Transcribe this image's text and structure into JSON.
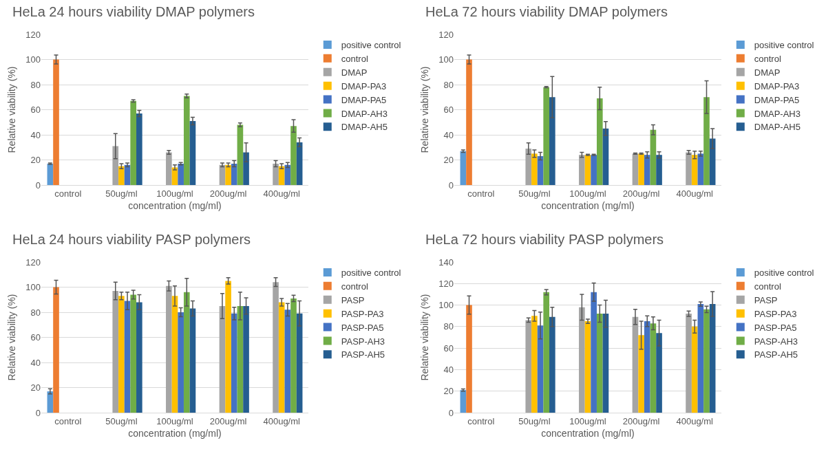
{
  "chart_data": [
    {
      "type": "bar",
      "title": "HeLa 24 hours viability DMAP polymers",
      "xlabel": "concentration (mg/ml)",
      "ylabel": "Relative viability (%)",
      "categories": [
        "control",
        "50ug/ml",
        "100ug/ml",
        "200ug/ml",
        "400ug/ml"
      ],
      "ylim": [
        0,
        120
      ],
      "yticks": [
        0,
        20,
        40,
        60,
        80,
        100,
        120
      ],
      "grid": "y",
      "legend": "right",
      "series": [
        {
          "name": "positive control",
          "color": "#5b9bd5",
          "values": [
            17,
            null,
            null,
            null,
            null
          ],
          "errors": [
            0.5,
            null,
            null,
            null,
            null
          ]
        },
        {
          "name": "control",
          "color": "#ed7d31",
          "values": [
            100,
            null,
            null,
            null,
            null
          ],
          "errors": [
            3.5,
            null,
            null,
            null,
            null
          ]
        },
        {
          "name": "DMAP",
          "color": "#a5a5a5",
          "values": [
            null,
            31,
            26,
            16,
            17
          ],
          "errors": [
            null,
            10,
            1.5,
            1.5,
            2.5
          ]
        },
        {
          "name": "DMAP-PA3",
          "color": "#ffc000",
          "values": [
            null,
            15,
            14,
            16,
            15
          ],
          "errors": [
            null,
            2,
            2,
            1.5,
            2
          ]
        },
        {
          "name": "DMAP-PA5",
          "color": "#4472c4",
          "values": [
            null,
            16,
            17,
            17,
            16
          ],
          "errors": [
            null,
            1.5,
            1,
            2.5,
            2
          ]
        },
        {
          "name": "DMAP-AH3",
          "color": "#70ad47",
          "values": [
            null,
            67,
            71,
            48,
            47
          ],
          "errors": [
            null,
            1,
            1.5,
            1.5,
            5
          ]
        },
        {
          "name": "DMAP-AH5",
          "color": "#255e91",
          "values": [
            null,
            57,
            51,
            26,
            34
          ],
          "errors": [
            null,
            2.5,
            3,
            7.5,
            3.5
          ]
        }
      ]
    },
    {
      "type": "bar",
      "title": "HeLa 72 hours viability DMAP polymers",
      "xlabel": "concentration (mg/ml)",
      "ylabel": "Relative viability (%)",
      "categories": [
        "control",
        "50ug/ml",
        "100ug/ml",
        "200ug/ml",
        "400ug/ml"
      ],
      "ylim": [
        0,
        120
      ],
      "yticks": [
        0,
        20,
        40,
        60,
        80,
        100,
        120
      ],
      "grid": "y",
      "legend": "right",
      "series": [
        {
          "name": "positive control",
          "color": "#5b9bd5",
          "values": [
            27,
            null,
            null,
            null,
            null
          ],
          "errors": [
            1,
            null,
            null,
            null,
            null
          ]
        },
        {
          "name": "control",
          "color": "#ed7d31",
          "values": [
            100,
            null,
            null,
            null,
            null
          ],
          "errors": [
            3.5,
            null,
            null,
            null,
            null
          ]
        },
        {
          "name": "DMAP",
          "color": "#a5a5a5",
          "values": [
            null,
            29,
            24,
            25,
            26
          ],
          "errors": [
            null,
            4.5,
            2,
            0.5,
            1.5
          ]
        },
        {
          "name": "DMAP-PA3",
          "color": "#ffc000",
          "values": [
            null,
            25,
            24,
            25,
            24
          ],
          "errors": [
            null,
            3,
            0.5,
            0.5,
            3
          ]
        },
        {
          "name": "DMAP-PA5",
          "color": "#4472c4",
          "values": [
            null,
            23,
            24,
            24,
            25
          ],
          "errors": [
            null,
            3,
            0.5,
            2.5,
            2
          ]
        },
        {
          "name": "DMAP-AH3",
          "color": "#70ad47",
          "values": [
            null,
            78,
            69,
            44,
            70
          ],
          "errors": [
            null,
            0.5,
            9,
            4,
            13
          ]
        },
        {
          "name": "DMAP-AH5",
          "color": "#255e91",
          "values": [
            null,
            70,
            45,
            24,
            37
          ],
          "errors": [
            null,
            16.5,
            5.5,
            2.5,
            8
          ]
        }
      ]
    },
    {
      "type": "bar",
      "title": "HeLa 24 hours viability PASP polymers",
      "xlabel": "concentration (mg/ml)",
      "ylabel": "Relative viability (%)",
      "categories": [
        "control",
        "50ug/ml",
        "100ug/ml",
        "200ug/ml",
        "400ug/ml"
      ],
      "ylim": [
        0,
        120
      ],
      "yticks": [
        0,
        20,
        40,
        60,
        80,
        100,
        120
      ],
      "grid": "y",
      "legend": "right",
      "series": [
        {
          "name": "positive control",
          "color": "#5b9bd5",
          "values": [
            17,
            null,
            null,
            null,
            null
          ],
          "errors": [
            2,
            null,
            null,
            null,
            null
          ]
        },
        {
          "name": "control",
          "color": "#ed7d31",
          "values": [
            100,
            null,
            null,
            null,
            null
          ],
          "errors": [
            5.5,
            null,
            null,
            null,
            null
          ]
        },
        {
          "name": "PASP",
          "color": "#a5a5a5",
          "values": [
            null,
            97,
            101,
            85,
            104
          ],
          "errors": [
            null,
            7,
            4,
            10,
            3.5
          ]
        },
        {
          "name": "PASP-PA3",
          "color": "#ffc000",
          "values": [
            null,
            93,
            93,
            105,
            88
          ],
          "errors": [
            null,
            3,
            8,
            2.5,
            3
          ]
        },
        {
          "name": "PASP-PA5",
          "color": "#4472c4",
          "values": [
            null,
            89,
            80,
            79,
            82
          ],
          "errors": [
            null,
            7,
            3.5,
            5,
            5
          ]
        },
        {
          "name": "PASP-AH3",
          "color": "#70ad47",
          "values": [
            null,
            94,
            96,
            85,
            91
          ],
          "errors": [
            null,
            3.5,
            11,
            11,
            2.5
          ]
        },
        {
          "name": "PASP-AH5",
          "color": "#255e91",
          "values": [
            null,
            88,
            83,
            85,
            79
          ],
          "errors": [
            null,
            6,
            6,
            6.5,
            10
          ]
        }
      ]
    },
    {
      "type": "bar",
      "title": "HeLa 72 hours viability PASP polymers",
      "xlabel": "concentration (mg/ml)",
      "ylabel": "Relative viability (%)",
      "categories": [
        "control",
        "50ug/ml",
        "100ug/ml",
        "200ug/ml",
        "400ug/ml"
      ],
      "ylim": [
        0,
        140
      ],
      "yticks": [
        0,
        20,
        40,
        60,
        80,
        100,
        120,
        140
      ],
      "grid": "y",
      "legend": "right",
      "series": [
        {
          "name": "positive control",
          "color": "#5b9bd5",
          "values": [
            21,
            null,
            null,
            null,
            null
          ],
          "errors": [
            1,
            null,
            null,
            null,
            null
          ]
        },
        {
          "name": "control",
          "color": "#ed7d31",
          "values": [
            100,
            null,
            null,
            null,
            null
          ],
          "errors": [
            8.5,
            null,
            null,
            null,
            null
          ]
        },
        {
          "name": "PASP",
          "color": "#a5a5a5",
          "values": [
            null,
            86,
            98,
            89,
            92
          ],
          "errors": [
            null,
            2,
            12,
            7,
            2.5
          ]
        },
        {
          "name": "PASP-PA3",
          "color": "#ffc000",
          "values": [
            null,
            90,
            85,
            72,
            80
          ],
          "errors": [
            null,
            5,
            2,
            13,
            6
          ]
        },
        {
          "name": "PASP-PA5",
          "color": "#4472c4",
          "values": [
            null,
            81,
            112,
            85,
            101
          ],
          "errors": [
            null,
            12.5,
            8.5,
            5,
            2
          ]
        },
        {
          "name": "PASP-AH3",
          "color": "#70ad47",
          "values": [
            null,
            112,
            92,
            83,
            96
          ],
          "errors": [
            null,
            2.5,
            8,
            6,
            3
          ]
        },
        {
          "name": "PASP-AH5",
          "color": "#255e91",
          "values": [
            null,
            89,
            92,
            74,
            101
          ],
          "errors": [
            null,
            9,
            12.5,
            12,
            11.5
          ]
        }
      ]
    }
  ]
}
